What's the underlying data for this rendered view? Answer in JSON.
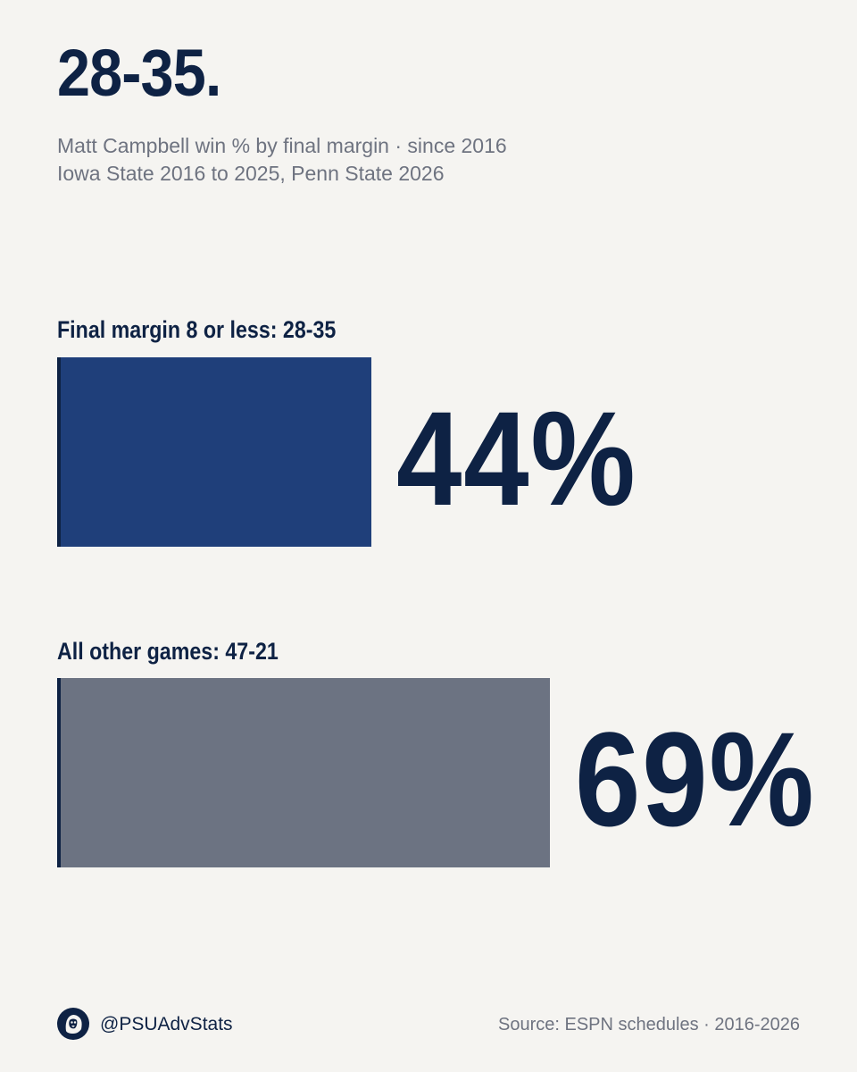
{
  "headline": "28-35.",
  "subtitle": {
    "line1": "Matt Campbell win % by final margin · since 2016",
    "line2": "Iowa State 2016 to 2025, Penn State 2026"
  },
  "colors": {
    "background": "#f5f4f1",
    "navy": "#0e2244",
    "bar_close": "#1f3f7a",
    "bar_other": "#6c7382",
    "muted_text": "#6e7380"
  },
  "chart_data": {
    "type": "bar",
    "orientation": "horizontal",
    "title": "28-35.",
    "subtitle": "Matt Campbell win % by final margin · since 2016",
    "categories": [
      "Final margin 8 or less: 28-35",
      "All other games: 47-21"
    ],
    "values": [
      44,
      69
    ],
    "value_labels": [
      "44%",
      "69%"
    ],
    "unit": "%",
    "xlim": [
      0,
      100
    ],
    "grid": false,
    "legend": "none"
  },
  "footer": {
    "logo_icon": "lion-head-icon",
    "handle": "@PSUAdvStats",
    "source": "Source: ESPN schedules · 2016-2026"
  }
}
